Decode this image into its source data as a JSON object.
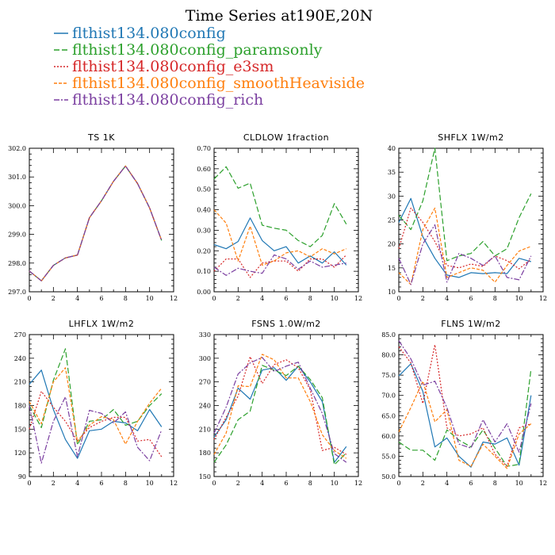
{
  "figure": {
    "title": "Time Series at190E,20N"
  },
  "legend": [
    {
      "label": "flthist134.080config",
      "color": "#1f77b4",
      "dash": ""
    },
    {
      "label": "flthist134.080config_paramsonly",
      "color": "#2ca02c",
      "dash": "7,3"
    },
    {
      "label": "flthist134.080config_e3sm",
      "color": "#d62728",
      "dash": "2,2"
    },
    {
      "label": "flthist134.080config_smoothHeaviside",
      "color": "#ff7f0e",
      "dash": "4,2"
    },
    {
      "label": "flthist134.080config_rich",
      "color": "#7b3fa0",
      "dash": "7,2,2,2"
    }
  ],
  "chart_data": [
    {
      "type": "line",
      "title": "TS   1K",
      "xlim": [
        0,
        12
      ],
      "ylim": [
        297.0,
        302.0
      ],
      "xticks": [
        "0",
        "2",
        "4",
        "6",
        "8",
        "10",
        "12"
      ],
      "yticks": [
        "297.0",
        "298.0",
        "299.0",
        "300.0",
        "301.0",
        "302.0"
      ],
      "x": [
        0,
        1,
        2,
        3,
        4,
        5,
        6,
        7,
        8,
        9,
        10,
        11
      ],
      "series": [
        {
          "values": [
            297.72,
            297.38,
            297.92,
            298.18,
            298.28,
            299.58,
            300.17,
            300.85,
            301.38,
            300.77,
            299.92,
            298.79
          ]
        },
        {
          "values": [
            297.72,
            297.38,
            297.92,
            298.18,
            298.28,
            299.58,
            300.17,
            300.85,
            301.38,
            300.77,
            299.92,
            298.79
          ]
        },
        {
          "values": [
            297.72,
            297.38,
            297.92,
            298.18,
            298.28,
            299.58,
            300.17,
            300.85,
            301.38,
            300.77,
            299.92,
            298.79
          ]
        },
        {
          "values": [
            297.72,
            297.38,
            297.92,
            298.18,
            298.28,
            299.58,
            300.17,
            300.85,
            301.38,
            300.77,
            299.92,
            298.79
          ]
        },
        {
          "values": [
            297.72,
            297.38,
            297.92,
            298.18,
            298.28,
            299.58,
            300.17,
            300.85,
            301.38,
            300.77,
            299.92,
            298.79
          ]
        }
      ]
    },
    {
      "type": "line",
      "title": "CLDLOW   1fraction",
      "xlim": [
        0,
        12
      ],
      "ylim": [
        0.0,
        0.7
      ],
      "xticks": [
        "0",
        "2",
        "4",
        "6",
        "8",
        "10",
        "12"
      ],
      "yticks": [
        "0.00",
        "0.10",
        "0.20",
        "0.30",
        "0.40",
        "0.50",
        "0.60",
        "0.70"
      ],
      "x": [
        0,
        1,
        2,
        3,
        4,
        5,
        6,
        7,
        8,
        9,
        10,
        11
      ],
      "series": [
        {
          "values": [
            0.23,
            0.21,
            0.245,
            0.36,
            0.25,
            0.2,
            0.22,
            0.14,
            0.175,
            0.14,
            0.195,
            0.13
          ]
        },
        {
          "values": [
            0.55,
            0.61,
            0.505,
            0.53,
            0.325,
            0.31,
            0.3,
            0.25,
            0.22,
            0.275,
            0.43,
            0.33
          ]
        },
        {
          "values": [
            0.1,
            0.16,
            0.16,
            0.07,
            0.14,
            0.15,
            0.15,
            0.1,
            0.16,
            0.16,
            0.12,
            0.18
          ]
        },
        {
          "values": [
            0.4,
            0.335,
            0.15,
            0.32,
            0.13,
            0.15,
            0.19,
            0.2,
            0.17,
            0.21,
            0.185,
            0.21
          ]
        },
        {
          "values": [
            0.12,
            0.08,
            0.115,
            0.1,
            0.09,
            0.18,
            0.16,
            0.11,
            0.15,
            0.12,
            0.13,
            0.14
          ]
        }
      ]
    },
    {
      "type": "line",
      "title": "SHFLX   1W/m2",
      "xlim": [
        0,
        12
      ],
      "ylim": [
        10,
        40
      ],
      "xticks": [
        "0",
        "2",
        "4",
        "6",
        "8",
        "10",
        "12"
      ],
      "yticks": [
        "10",
        "15",
        "20",
        "25",
        "30",
        "35",
        "40"
      ],
      "x": [
        0,
        1,
        2,
        3,
        4,
        5,
        6,
        7,
        8,
        9,
        10,
        11
      ],
      "series": [
        {
          "values": [
            24.5,
            29.5,
            21.5,
            17.0,
            13.5,
            13.0,
            14.0,
            13.8,
            14.0,
            13.8,
            17.0,
            16.3
          ]
        },
        {
          "values": [
            26.0,
            23.0,
            29.0,
            40.0,
            16.5,
            17.5,
            18.0,
            20.5,
            17.5,
            19.0,
            25.5,
            30.5
          ]
        },
        {
          "values": [
            19.0,
            27.5,
            24.5,
            20.5,
            15.5,
            15.0,
            15.8,
            15.3,
            17.5,
            16.5,
            14.8,
            16.8
          ]
        },
        {
          "values": [
            14.0,
            11.5,
            23.0,
            27.5,
            13.0,
            14.0,
            15.0,
            14.5,
            12.0,
            15.5,
            18.5,
            19.5
          ]
        },
        {
          "values": [
            17.0,
            11.5,
            20.0,
            24.0,
            12.0,
            18.0,
            17.0,
            15.5,
            17.5,
            13.0,
            12.5,
            17.5
          ]
        }
      ]
    },
    {
      "type": "line",
      "title": "LHFLX   1W/m2",
      "xlim": [
        0,
        12
      ],
      "ylim": [
        90,
        270
      ],
      "xticks": [
        "0",
        "2",
        "4",
        "6",
        "8",
        "10",
        "12"
      ],
      "yticks": [
        "90",
        "120",
        "150",
        "180",
        "210",
        "240",
        "270"
      ],
      "x": [
        0,
        1,
        2,
        3,
        4,
        5,
        6,
        7,
        8,
        9,
        10,
        11
      ],
      "series": [
        {
          "values": [
            207,
            225,
            175,
            137,
            113,
            148,
            150,
            160,
            158,
            148,
            175,
            153
          ]
        },
        {
          "values": [
            180,
            152,
            212,
            252,
            130,
            160,
            162,
            175,
            155,
            160,
            180,
            195
          ]
        },
        {
          "values": [
            150,
            198,
            178,
            160,
            135,
            152,
            160,
            165,
            165,
            135,
            137,
            115
          ]
        },
        {
          "values": [
            185,
            157,
            210,
            228,
            134,
            155,
            166,
            162,
            131,
            160,
            183,
            202
          ]
        },
        {
          "values": [
            180,
            107,
            160,
            191,
            115,
            174,
            170,
            158,
            172,
            127,
            110,
            149
          ]
        }
      ]
    },
    {
      "type": "line",
      "title": "FSNS   1.0W/m2",
      "xlim": [
        0,
        12
      ],
      "ylim": [
        150,
        330
      ],
      "xticks": [
        "0",
        "2",
        "4",
        "6",
        "8",
        "10",
        "12"
      ],
      "yticks": [
        "150",
        "180",
        "210",
        "240",
        "270",
        "300",
        "330"
      ],
      "x": [
        0,
        1,
        2,
        3,
        4,
        5,
        6,
        7,
        8,
        9,
        10,
        11
      ],
      "series": [
        {
          "values": [
            200,
            222,
            262,
            248,
            285,
            288,
            272,
            290,
            270,
            245,
            168,
            188
          ]
        },
        {
          "values": [
            168,
            190,
            222,
            233,
            291,
            285,
            278,
            290,
            273,
            250,
            165,
            180
          ]
        },
        {
          "values": [
            197,
            225,
            252,
            302,
            268,
            292,
            298,
            288,
            260,
            183,
            187,
            178
          ]
        },
        {
          "values": [
            178,
            205,
            265,
            264,
            305,
            298,
            275,
            275,
            245,
            203,
            183,
            173
          ]
        },
        {
          "values": [
            205,
            238,
            280,
            294,
            301,
            283,
            290,
            295,
            262,
            230,
            179,
            168
          ]
        }
      ]
    },
    {
      "type": "line",
      "title": "FLNS   1W/m2",
      "xlim": [
        0,
        12
      ],
      "ylim": [
        50.0,
        85.0
      ],
      "xticks": [
        "0",
        "2",
        "4",
        "6",
        "8",
        "10",
        "12"
      ],
      "yticks": [
        "50.0",
        "55.0",
        "60.0",
        "65.0",
        "70.0",
        "75.0",
        "80.0",
        "85.0"
      ],
      "x": [
        0,
        1,
        2,
        3,
        4,
        5,
        6,
        7,
        8,
        9,
        10,
        11
      ],
      "series": [
        {
          "values": [
            74.8,
            77.8,
            71.0,
            57.3,
            59.5,
            55.0,
            52.3,
            58.5,
            58.0,
            59.5,
            52.8,
            70.0
          ]
        },
        {
          "values": [
            58.5,
            56.5,
            56.5,
            54.0,
            61.5,
            59.0,
            57.3,
            61.5,
            57.0,
            52.5,
            53.0,
            76.5
          ]
        },
        {
          "values": [
            82.0,
            78.0,
            68.0,
            82.5,
            62.0,
            60.0,
            60.5,
            62.0,
            55.5,
            52.5,
            62.0,
            63.0
          ]
        },
        {
          "values": [
            61.0,
            67.0,
            73.5,
            63.5,
            66.5,
            54.0,
            52.5,
            58.0,
            55.0,
            52.0,
            60.5,
            63.0
          ]
        },
        {
          "values": [
            83.5,
            79.0,
            72.5,
            73.5,
            67.0,
            58.0,
            57.0,
            64.0,
            58.5,
            63.0,
            56.0,
            68.0
          ]
        }
      ]
    }
  ]
}
